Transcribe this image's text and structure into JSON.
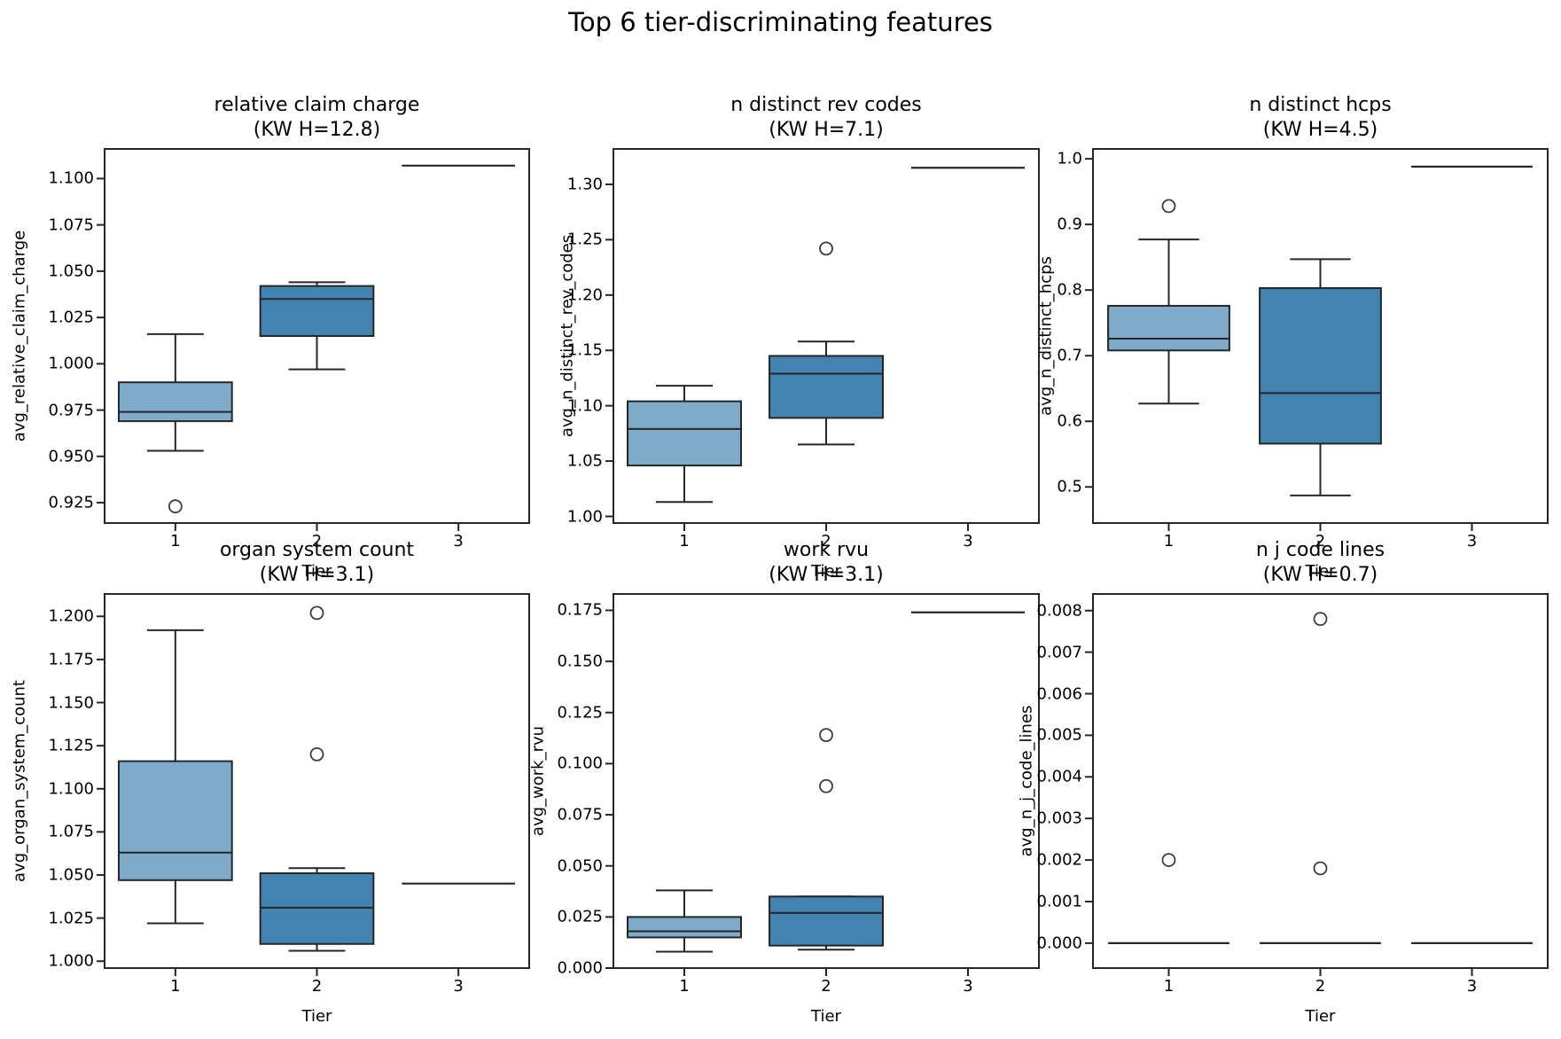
{
  "suptitle": "Top 6 tier-discriminating features",
  "colors": {
    "tier1_fill": "#7dabc9",
    "tier2_fill": "#4383b1",
    "edge": "#262626",
    "outlier_edge": "#3c3c3c",
    "background": "#ffffff"
  },
  "chart_data": [
    {
      "type": "boxplot",
      "title": "relative claim charge",
      "subtitle": "(KW H=12.8)",
      "kw_h": 12.8,
      "ylabel": "avg_relative_claim_charge",
      "xlabel": "Tier",
      "xticks": [
        "1",
        "2",
        "3"
      ],
      "yticks": [
        "0.925",
        "0.950",
        "0.975",
        "1.000",
        "1.025",
        "1.050",
        "1.075",
        "1.100"
      ],
      "ylim": [
        0.914,
        1.116
      ],
      "xlim": [
        0.5,
        3.5
      ],
      "series": [
        {
          "tier": "1",
          "kind": "box",
          "whisker_low": 0.953,
          "q1": 0.969,
          "median": 0.974,
          "q3": 0.99,
          "whisker_high": 1.016,
          "outliers": [
            0.923
          ],
          "fill": "tier1_fill"
        },
        {
          "tier": "2",
          "kind": "box",
          "whisker_low": 0.997,
          "q1": 1.015,
          "median": 1.035,
          "q3": 1.042,
          "whisker_high": 1.044,
          "outliers": [],
          "fill": "tier2_fill"
        },
        {
          "tier": "3",
          "kind": "line",
          "value": 1.107,
          "outliers": []
        }
      ]
    },
    {
      "type": "boxplot",
      "title": "n distinct rev codes",
      "subtitle": "(KW H=7.1)",
      "kw_h": 7.1,
      "ylabel": "avg_n_distinct_rev_codes",
      "xlabel": "Tier",
      "xticks": [
        "1",
        "2",
        "3"
      ],
      "yticks": [
        "1.00",
        "1.05",
        "1.10",
        "1.15",
        "1.20",
        "1.25",
        "1.30"
      ],
      "ylim": [
        0.994,
        1.332
      ],
      "xlim": [
        0.5,
        3.5
      ],
      "series": [
        {
          "tier": "1",
          "kind": "box",
          "whisker_low": 1.013,
          "q1": 1.046,
          "median": 1.079,
          "q3": 1.104,
          "whisker_high": 1.118,
          "outliers": [],
          "fill": "tier1_fill"
        },
        {
          "tier": "2",
          "kind": "box",
          "whisker_low": 1.065,
          "q1": 1.089,
          "median": 1.129,
          "q3": 1.145,
          "whisker_high": 1.158,
          "outliers": [
            1.242
          ],
          "fill": "tier2_fill"
        },
        {
          "tier": "3",
          "kind": "line",
          "value": 1.315,
          "outliers": []
        }
      ]
    },
    {
      "type": "boxplot",
      "title": "n distinct hcps",
      "subtitle": "(KW H=4.5)",
      "kw_h": 4.5,
      "ylabel": "avg_n_distinct_hcps",
      "xlabel": "Tier",
      "xticks": [
        "1",
        "2",
        "3"
      ],
      "yticks": [
        "0.5",
        "0.6",
        "0.7",
        "0.8",
        "0.9",
        "1.0"
      ],
      "ylim": [
        0.445,
        1.015
      ],
      "xlim": [
        0.5,
        3.5
      ],
      "series": [
        {
          "tier": "1",
          "kind": "box",
          "whisker_low": 0.627,
          "q1": 0.708,
          "median": 0.726,
          "q3": 0.776,
          "whisker_high": 0.877,
          "outliers": [
            0.928
          ],
          "fill": "tier1_fill"
        },
        {
          "tier": "2",
          "kind": "box",
          "whisker_low": 0.487,
          "q1": 0.566,
          "median": 0.643,
          "q3": 0.803,
          "whisker_high": 0.847,
          "outliers": [],
          "fill": "tier2_fill"
        },
        {
          "tier": "3",
          "kind": "line",
          "value": 0.988,
          "outliers": []
        }
      ]
    },
    {
      "type": "boxplot",
      "title": "organ system count",
      "subtitle": "(KW H=3.1)",
      "kw_h": 3.1,
      "ylabel": "avg_organ_system_count",
      "xlabel": "Tier",
      "xticks": [
        "1",
        "2",
        "3"
      ],
      "yticks": [
        "1.000",
        "1.025",
        "1.050",
        "1.075",
        "1.100",
        "1.125",
        "1.150",
        "1.175",
        "1.200"
      ],
      "ylim": [
        0.996,
        1.213
      ],
      "xlim": [
        0.5,
        3.5
      ],
      "series": [
        {
          "tier": "1",
          "kind": "box",
          "whisker_low": 1.022,
          "q1": 1.047,
          "median": 1.063,
          "q3": 1.116,
          "whisker_high": 1.192,
          "outliers": [],
          "fill": "tier1_fill"
        },
        {
          "tier": "2",
          "kind": "box",
          "whisker_low": 1.006,
          "q1": 1.01,
          "median": 1.031,
          "q3": 1.051,
          "whisker_high": 1.054,
          "outliers": [
            1.202,
            1.12
          ],
          "fill": "tier2_fill"
        },
        {
          "tier": "3",
          "kind": "line",
          "value": 1.045,
          "outliers": []
        }
      ]
    },
    {
      "type": "boxplot",
      "title": "work rvu",
      "subtitle": "(KW H=3.1)",
      "kw_h": 3.1,
      "ylabel": "avg_work_rvu",
      "xlabel": "Tier",
      "xticks": [
        "1",
        "2",
        "3"
      ],
      "yticks": [
        "0.000",
        "0.025",
        "0.050",
        "0.075",
        "0.100",
        "0.125",
        "0.150",
        "0.175"
      ],
      "ylim": [
        0.0,
        0.183
      ],
      "xlim": [
        0.5,
        3.5
      ],
      "series": [
        {
          "tier": "1",
          "kind": "box",
          "whisker_low": 0.008,
          "q1": 0.015,
          "median": 0.018,
          "q3": 0.025,
          "whisker_high": 0.038,
          "outliers": [],
          "fill": "tier1_fill"
        },
        {
          "tier": "2",
          "kind": "box",
          "whisker_low": 0.009,
          "q1": 0.011,
          "median": 0.027,
          "q3": 0.035,
          "whisker_high": 0.035,
          "outliers": [
            0.114,
            0.089
          ],
          "fill": "tier2_fill"
        },
        {
          "tier": "3",
          "kind": "line",
          "value": 0.174,
          "outliers": []
        }
      ]
    },
    {
      "type": "boxplot",
      "title": "n j code lines",
      "subtitle": "(KW H=0.7)",
      "kw_h": 0.7,
      "ylabel": "avg_n_j_code_lines",
      "xlabel": "Tier",
      "xticks": [
        "1",
        "2",
        "3"
      ],
      "yticks": [
        "0.000",
        "0.001",
        "0.002",
        "0.003",
        "0.004",
        "0.005",
        "0.006",
        "0.007",
        "0.008"
      ],
      "ylim": [
        -0.0006,
        0.0084
      ],
      "xlim": [
        0.5,
        3.5
      ],
      "series": [
        {
          "tier": "1",
          "kind": "line",
          "value": 0.0,
          "outliers": [
            0.002
          ]
        },
        {
          "tier": "2",
          "kind": "line",
          "value": 0.0,
          "outliers": [
            0.0078,
            0.0018
          ]
        },
        {
          "tier": "3",
          "kind": "line",
          "value": 0.0,
          "outliers": []
        }
      ]
    }
  ]
}
